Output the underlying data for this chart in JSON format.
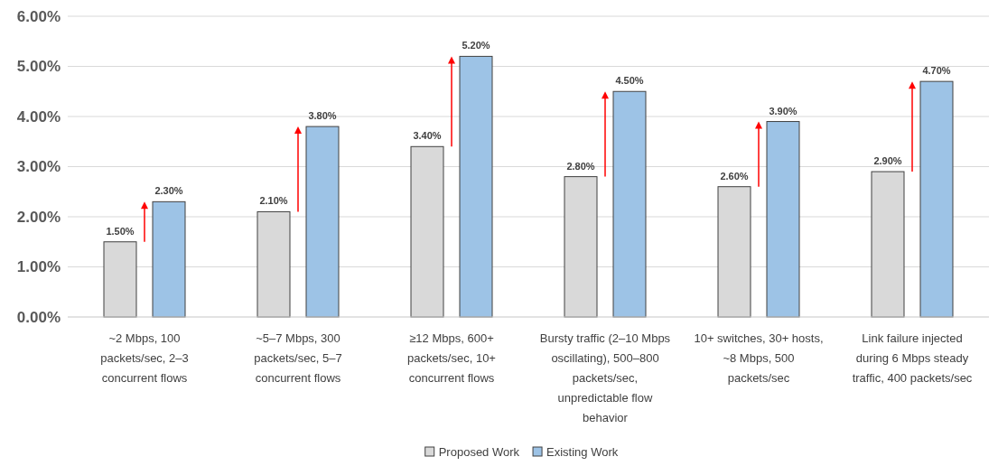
{
  "chart_data": {
    "type": "bar",
    "categories": [
      "~2 Mbps, 100 packets/sec, 2–3 concurrent flows",
      "~5–7 Mbps, 300 packets/sec, 5–7 concurrent flows",
      "≥12 Mbps, 600+ packets/sec, 10+ concurrent flows",
      "Bursty traffic (2–10 Mbps oscillating), 500–800 packets/sec, unpredictable flow behavior",
      "10+ switches, 30+ hosts, ~8 Mbps, 500 packets/sec",
      "Link failure injected during 6 Mbps steady traffic, 400 packets/sec"
    ],
    "series": [
      {
        "name": "Proposed Work",
        "color": "#d9d9d9",
        "values": [
          1.5,
          2.1,
          3.4,
          2.8,
          2.6,
          2.9
        ],
        "value_labels": [
          "1.50%",
          "2.10%",
          "3.40%",
          "2.80%",
          "2.60%",
          "2.90%"
        ]
      },
      {
        "name": "Existing Work",
        "color": "#9dc3e6",
        "values": [
          2.3,
          3.8,
          5.2,
          4.5,
          3.9,
          4.7
        ],
        "value_labels": [
          "2.30%",
          "3.80%",
          "5.20%",
          "4.50%",
          "3.90%",
          "4.70%"
        ]
      }
    ],
    "ylim": [
      0,
      6
    ],
    "yticks": [
      {
        "value": 0,
        "label": "0.00%"
      },
      {
        "value": 1,
        "label": "1.00%"
      },
      {
        "value": 2,
        "label": "2.00%"
      },
      {
        "value": 3,
        "label": "3.00%"
      },
      {
        "value": 4,
        "label": "4.00%"
      },
      {
        "value": 5,
        "label": "5.00%"
      },
      {
        "value": 6,
        "label": "6.00%"
      }
    ],
    "grid": "y",
    "legend": "bottom"
  }
}
